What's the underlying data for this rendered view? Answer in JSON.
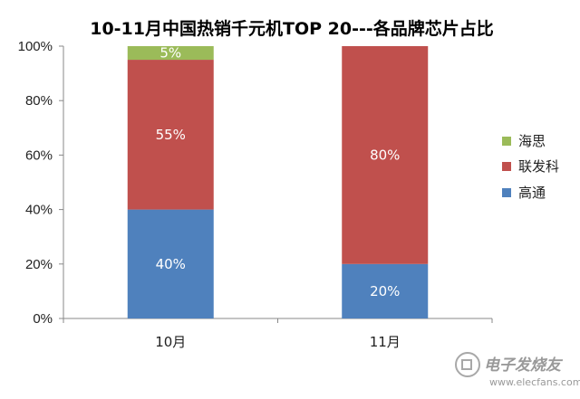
{
  "chart_data": {
    "type": "bar",
    "stacked": true,
    "title": "10-11月中国热销千元机TOP 20---各品牌芯片占比",
    "categories": [
      "10月",
      "11月"
    ],
    "series": [
      {
        "name": "高通",
        "values": [
          40,
          20
        ],
        "labels": [
          "40%",
          "20%"
        ],
        "color": "#4F81BD"
      },
      {
        "name": "联发科",
        "values": [
          55,
          80
        ],
        "labels": [
          "55%",
          "80%"
        ],
        "color": "#C0504D"
      },
      {
        "name": "海思",
        "values": [
          5,
          0
        ],
        "labels": [
          "5%",
          ""
        ],
        "color": "#9BBB59"
      }
    ],
    "ylim": [
      0,
      100
    ],
    "yticks": [
      0,
      20,
      40,
      60,
      80,
      100
    ],
    "yticklabels": [
      "0%",
      "20%",
      "40%",
      "60%",
      "80%",
      "100%"
    ],
    "grid": false,
    "legend_position": "right",
    "legend_order": [
      "海思",
      "联发科",
      "高通"
    ]
  },
  "watermark": {
    "text": "电子发烧友",
    "url": "www.elecfans.com"
  }
}
